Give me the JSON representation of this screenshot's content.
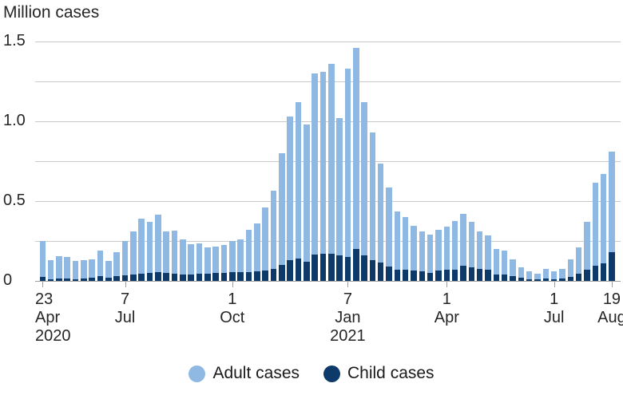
{
  "chart_data": {
    "type": "bar",
    "subtype": "stacked-weekly",
    "title": "Million cases",
    "unit": "million cases",
    "weeks": 70,
    "date_range": {
      "first_bar": "23 Apr 2020",
      "last_bar": "19 Aug 2021"
    },
    "colors": {
      "adult": "#8fb9e2",
      "child": "#0d3a68",
      "gridline": "#c9c9c9",
      "axis": "#9e9e9e",
      "text": "#262626"
    },
    "series": [
      {
        "name": "Adult cases",
        "color": "#8fb9e2",
        "values": [
          0.225,
          0.118,
          0.14,
          0.135,
          0.113,
          0.115,
          0.115,
          0.16,
          0.105,
          0.15,
          0.215,
          0.27,
          0.345,
          0.32,
          0.36,
          0.26,
          0.27,
          0.22,
          0.19,
          0.19,
          0.165,
          0.165,
          0.175,
          0.195,
          0.205,
          0.265,
          0.3,
          0.395,
          0.49,
          0.7,
          0.9,
          0.98,
          0.86,
          1.135,
          1.14,
          1.19,
          0.86,
          1.18,
          1.26,
          0.96,
          0.8,
          0.62,
          0.495,
          0.363,
          0.332,
          0.28,
          0.25,
          0.238,
          0.257,
          0.272,
          0.303,
          0.327,
          0.285,
          0.233,
          0.215,
          0.16,
          0.15,
          0.105,
          0.065,
          0.048,
          0.039,
          0.064,
          0.052,
          0.064,
          0.108,
          0.167,
          0.3,
          0.518,
          0.56,
          0.63
        ]
      },
      {
        "name": "Child cases",
        "color": "#0d3a68",
        "values": [
          0.025,
          0.012,
          0.015,
          0.015,
          0.012,
          0.015,
          0.02,
          0.03,
          0.02,
          0.03,
          0.035,
          0.04,
          0.045,
          0.05,
          0.055,
          0.05,
          0.045,
          0.04,
          0.04,
          0.045,
          0.045,
          0.05,
          0.05,
          0.055,
          0.055,
          0.055,
          0.06,
          0.065,
          0.075,
          0.1,
          0.13,
          0.14,
          0.12,
          0.165,
          0.17,
          0.17,
          0.16,
          0.15,
          0.2,
          0.16,
          0.13,
          0.115,
          0.09,
          0.072,
          0.068,
          0.065,
          0.06,
          0.052,
          0.063,
          0.068,
          0.072,
          0.093,
          0.085,
          0.077,
          0.07,
          0.04,
          0.04,
          0.03,
          0.02,
          0.012,
          0.008,
          0.013,
          0.008,
          0.013,
          0.027,
          0.043,
          0.07,
          0.097,
          0.11,
          0.18
        ]
      }
    ],
    "stack_order_bottom_to_top": [
      "Child cases",
      "Adult cases"
    ],
    "y_axis": {
      "min": 0,
      "max": 1.5,
      "gridline_step": 0.25,
      "gridlines": [
        {
          "value": 1.5,
          "label": "1.5"
        },
        {
          "value": 1.25,
          "label": ""
        },
        {
          "value": 1.0,
          "label": "1.0"
        },
        {
          "value": 0.75,
          "label": ""
        },
        {
          "value": 0.5,
          "label": "0.5"
        },
        {
          "value": 0.25,
          "label": ""
        },
        {
          "value": 0,
          "label": "0"
        }
      ]
    },
    "x_axis": {
      "ticks": [
        {
          "week": 1,
          "lines": [
            "23",
            "Apr",
            "2020"
          ]
        },
        {
          "week": 11,
          "lines": [
            "7",
            "Jul"
          ]
        },
        {
          "week": 24,
          "lines": [
            "1",
            "Oct"
          ]
        },
        {
          "week": 38,
          "lines": [
            "7",
            "Jan",
            "2021"
          ]
        },
        {
          "week": 50,
          "lines": [
            "1",
            "Apr"
          ]
        },
        {
          "week": 63,
          "lines": [
            "1",
            "Jul"
          ]
        },
        {
          "week": 70,
          "lines": [
            "19",
            "Aug"
          ]
        }
      ]
    },
    "legend_position": "bottom-center"
  }
}
